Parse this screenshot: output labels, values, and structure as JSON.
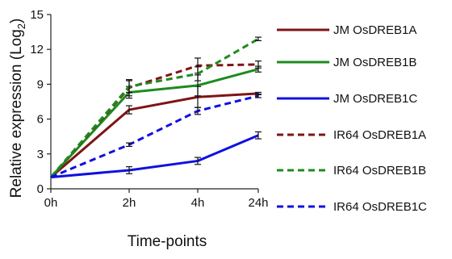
{
  "chart_data": {
    "type": "line",
    "title": "",
    "xlabel": "Time-points",
    "ylabel": "Relative expression (Log",
    "ylabel_subscript": "2",
    "ylabel_close": ")",
    "categories": [
      "0h",
      "2h",
      "4h",
      "24h"
    ],
    "ylim": [
      0,
      15
    ],
    "yticks": [
      "0",
      "3",
      "6",
      "9",
      "12",
      "15"
    ],
    "grid": false,
    "legend_position": "right",
    "series": [
      {
        "name": "JM OsDREB1A",
        "values": [
          1.0,
          6.8,
          7.9,
          8.2
        ],
        "errors": [
          0,
          0.35,
          0.9,
          0.1
        ],
        "color": "#7f1416",
        "dash": "solid"
      },
      {
        "name": "JM OsDREB1B",
        "values": [
          1.0,
          8.3,
          8.9,
          10.3
        ],
        "errors": [
          0,
          0.5,
          0.9,
          0.25
        ],
        "color": "#1e8b1e",
        "dash": "solid"
      },
      {
        "name": "JM OsDREB1C",
        "values": [
          1.0,
          1.6,
          2.4,
          4.6
        ],
        "errors": [
          0,
          0.3,
          0.3,
          0.3
        ],
        "color": "#1010e0",
        "dash": "solid"
      },
      {
        "name": "IR64 OsDREB1A",
        "values": [
          1.0,
          8.7,
          10.6,
          10.7
        ],
        "errors": [
          0,
          0.7,
          0.65,
          0.3
        ],
        "color": "#7f1416",
        "dash": "dashed"
      },
      {
        "name": "IR64 OsDREB1B",
        "values": [
          1.0,
          8.8,
          9.9,
          12.9
        ],
        "errors": [
          0,
          0.5,
          0.6,
          0.15
        ],
        "color": "#1e8b1e",
        "dash": "dashed"
      },
      {
        "name": "IR64 OsDREB1C",
        "values": [
          1.0,
          3.8,
          6.7,
          8.0
        ],
        "errors": [
          0,
          0.15,
          0.3,
          0.15
        ],
        "color": "#1010e0",
        "dash": "dashed"
      }
    ]
  }
}
